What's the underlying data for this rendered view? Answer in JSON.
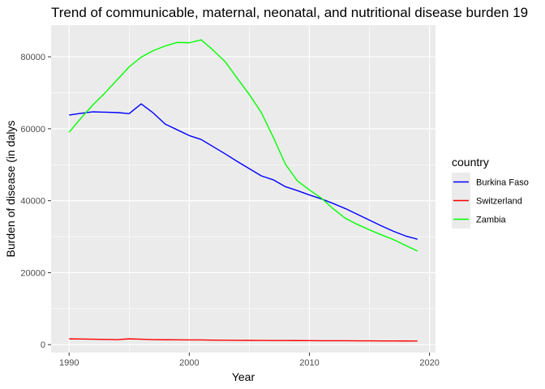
{
  "chart_data": {
    "type": "line",
    "title": "Trend of communicable, maternal, neonatal, and nutritional disease burden 19",
    "xlabel": "Year",
    "ylabel": "Burden of disease (in dalys",
    "xlim": [
      1988.5,
      2020.5
    ],
    "ylim": [
      -2200,
      88800
    ],
    "x_ticks": [
      1990,
      2000,
      2010,
      2020
    ],
    "y_ticks": [
      0,
      20000,
      40000,
      60000,
      80000
    ],
    "x_tick_labels": [
      "1990",
      "2000",
      "2010",
      "2020"
    ],
    "y_tick_labels": [
      "0",
      "20000",
      "40000",
      "60000",
      "80000"
    ],
    "grid": true,
    "legend_placement": "right",
    "legend_title": "country",
    "x": [
      1990,
      1991,
      1992,
      1993,
      1994,
      1995,
      1996,
      1997,
      1998,
      1999,
      2000,
      2001,
      2002,
      2003,
      2004,
      2005,
      2006,
      2007,
      2008,
      2009,
      2010,
      2011,
      2012,
      2013,
      2014,
      2015,
      2016,
      2017,
      2018,
      2019
    ],
    "series": [
      {
        "name": "Burkina Faso",
        "color": "#0000ff",
        "values": [
          63800,
          64300,
          64700,
          64600,
          64500,
          64200,
          66900,
          64400,
          61300,
          59700,
          58100,
          57000,
          55000,
          53000,
          50900,
          48900,
          46900,
          45800,
          43900,
          42800,
          41600,
          40500,
          39200,
          37800,
          36200,
          34600,
          33000,
          31500,
          30200,
          29300
        ]
      },
      {
        "name": "Switzerland",
        "color": "#ff0000",
        "values": [
          1600,
          1550,
          1500,
          1450,
          1400,
          1600,
          1500,
          1400,
          1350,
          1330,
          1310,
          1300,
          1250,
          1220,
          1200,
          1180,
          1160,
          1140,
          1130,
          1120,
          1100,
          1090,
          1080,
          1070,
          1060,
          1050,
          1030,
          1020,
          1010,
          1000
        ]
      },
      {
        "name": "Zambia",
        "color": "#00ff00",
        "values": [
          59000,
          63000,
          66700,
          70000,
          73600,
          77200,
          79900,
          81700,
          83000,
          84000,
          83900,
          84700,
          81800,
          78600,
          74000,
          69500,
          64500,
          57600,
          50200,
          45500,
          43000,
          40700,
          37700,
          35100,
          33400,
          31900,
          30500,
          29200,
          27600,
          26000
        ]
      }
    ]
  }
}
